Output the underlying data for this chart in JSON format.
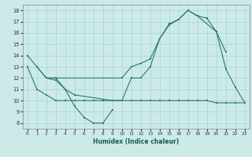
{
  "xlabel": "Humidex (Indice chaleur)",
  "background_color": "#cceae8",
  "grid_color": "#aad4d0",
  "line_color": "#2a7a6e",
  "xlim": [
    -0.5,
    23.5
  ],
  "ylim": [
    7.5,
    18.5
  ],
  "xticks": [
    0,
    1,
    2,
    3,
    4,
    5,
    6,
    7,
    8,
    9,
    10,
    11,
    12,
    13,
    14,
    15,
    16,
    17,
    18,
    19,
    20,
    21,
    22,
    23
  ],
  "yticks": [
    8,
    9,
    10,
    11,
    12,
    13,
    14,
    15,
    16,
    17,
    18
  ],
  "series": [
    {
      "x": [
        0,
        2,
        3,
        10,
        11,
        12,
        13,
        14,
        15,
        16,
        17,
        18,
        20,
        21
      ],
      "y": [
        14,
        12,
        12,
        12,
        13,
        13.3,
        13.7,
        15.5,
        16.8,
        17.2,
        18,
        17.5,
        16.1,
        14.3
      ]
    },
    {
      "x": [
        2,
        3,
        4,
        5,
        9,
        10,
        11,
        12,
        13,
        14,
        15,
        16,
        17,
        18,
        19,
        20,
        21,
        22,
        23
      ],
      "y": [
        12,
        11.8,
        11,
        10.5,
        10,
        10,
        12,
        12,
        13,
        15.5,
        16.7,
        17.2,
        18,
        17.5,
        17.3,
        16.1,
        12.8,
        11.2,
        9.8
      ]
    },
    {
      "x": [
        0,
        1,
        2,
        3,
        4,
        5,
        6,
        7,
        8,
        9,
        10,
        11,
        12,
        13,
        14,
        15,
        16,
        17,
        18,
        19,
        20,
        21,
        22,
        23
      ],
      "y": [
        13,
        11,
        10.5,
        10,
        10,
        10,
        10,
        10,
        10,
        10,
        10,
        10,
        10,
        10,
        10,
        10,
        10,
        10,
        10,
        10,
        9.8,
        9.8,
        9.8,
        9.8
      ]
    },
    {
      "x": [
        1,
        2,
        3,
        4,
        5,
        6,
        7,
        8,
        9
      ],
      "y": [
        13,
        12,
        12,
        11,
        9.5,
        8.5,
        8,
        8,
        9.2
      ]
    }
  ]
}
